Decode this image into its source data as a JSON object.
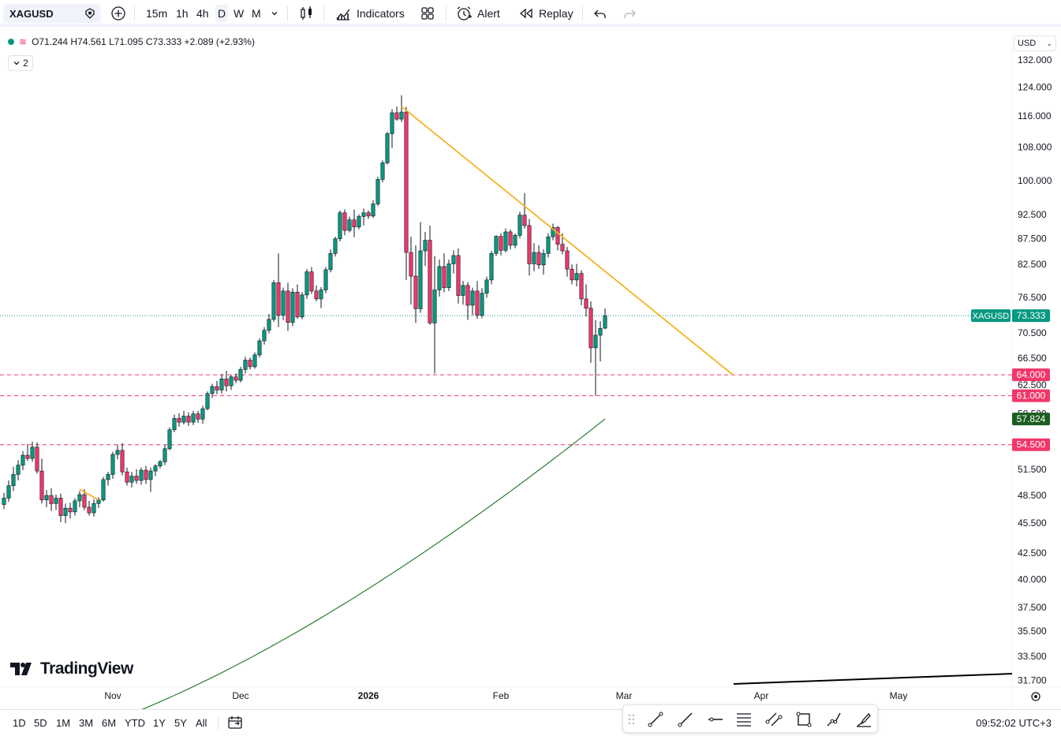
{
  "toolbar": {
    "symbol": "XAGUSD",
    "intervals": [
      "15m",
      "1h",
      "4h",
      "D",
      "W",
      "M"
    ],
    "active_interval": "D",
    "indicators_label": "Indicators",
    "alert_label": "Alert",
    "replay_label": "Replay"
  },
  "legend": {
    "ohlc": "O71.244 H74.561 L71.095 C73.333 +2.089 (+2.93%)",
    "collapse_count": "2"
  },
  "currency": "USD",
  "chart_data": {
    "type": "candlestick",
    "symbol": "XAGUSD",
    "price_axis_labels": [
      "132.000",
      "124.000",
      "116.000",
      "108.000",
      "100.000",
      "92.500",
      "87.500",
      "82.500",
      "76.500",
      "70.500",
      "66.500",
      "62.500",
      "58.500",
      "51.500",
      "48.500",
      "45.500",
      "42.500",
      "40.000",
      "37.500",
      "35.500",
      "33.500",
      "31.700"
    ],
    "time_axis_labels": [
      "Nov",
      "Dec",
      "2026",
      "Feb",
      "Mar",
      "Apr",
      "May"
    ],
    "last_price": 73.333,
    "last_price_label": "XAGUSD",
    "horizontal_levels": [
      {
        "value": 64.0,
        "label": "64.000",
        "color": "#f23669"
      },
      {
        "value": 61.0,
        "label": "61.000",
        "color": "#f23669"
      },
      {
        "value": 54.5,
        "label": "54.500",
        "color": "#f23669"
      }
    ],
    "moving_average": {
      "current": 57.824,
      "label": "57.824",
      "color": "#2e7d32"
    },
    "up_color": "#089981",
    "down_color": "#f23669",
    "trendline_color": "#f2b324",
    "candles": [
      [
        47.5,
        48.8,
        47.0,
        48.2
      ],
      [
        48.2,
        50.2,
        47.8,
        49.6
      ],
      [
        49.6,
        51.8,
        49.0,
        50.9
      ],
      [
        50.9,
        52.6,
        50.2,
        52.0
      ],
      [
        52.0,
        53.7,
        51.4,
        53.2
      ],
      [
        53.2,
        54.6,
        52.5,
        52.8
      ],
      [
        52.8,
        54.9,
        52.4,
        54.2
      ],
      [
        54.2,
        54.8,
        51.0,
        51.3
      ],
      [
        51.3,
        52.8,
        47.6,
        48.0
      ],
      [
        48.0,
        49.1,
        47.2,
        48.5
      ],
      [
        48.5,
        49.3,
        46.8,
        47.6
      ],
      [
        47.6,
        48.6,
        46.9,
        48.2
      ],
      [
        48.2,
        48.7,
        45.6,
        46.3
      ],
      [
        46.3,
        47.6,
        45.5,
        47.1
      ],
      [
        47.1,
        47.7,
        46.0,
        46.7
      ],
      [
        46.7,
        48.2,
        46.3,
        47.9
      ],
      [
        47.9,
        49.0,
        47.2,
        48.6
      ],
      [
        48.6,
        49.2,
        46.9,
        47.2
      ],
      [
        47.2,
        47.9,
        46.3,
        46.6
      ],
      [
        46.6,
        48.1,
        46.2,
        47.6
      ],
      [
        47.6,
        48.3,
        47.1,
        48.0
      ],
      [
        48.0,
        50.6,
        47.8,
        50.3
      ],
      [
        50.3,
        51.2,
        49.6,
        50.9
      ],
      [
        50.9,
        53.6,
        50.4,
        53.3
      ],
      [
        53.3,
        54.5,
        52.7,
        53.8
      ],
      [
        53.8,
        54.7,
        50.8,
        51.2
      ],
      [
        51.2,
        51.7,
        49.6,
        50.0
      ],
      [
        50.0,
        51.2,
        49.4,
        50.7
      ],
      [
        50.7,
        51.5,
        49.8,
        50.2
      ],
      [
        50.2,
        51.7,
        49.7,
        51.4
      ],
      [
        51.4,
        51.9,
        49.8,
        50.3
      ],
      [
        50.3,
        51.7,
        48.9,
        51.3
      ],
      [
        51.3,
        52.1,
        50.7,
        51.9
      ],
      [
        51.9,
        52.6,
        51.6,
        52.4
      ],
      [
        52.4,
        54.5,
        52.0,
        54.0
      ],
      [
        54.0,
        56.7,
        53.8,
        56.4
      ],
      [
        56.4,
        58.4,
        56.1,
        57.9
      ],
      [
        57.9,
        58.6,
        56.8,
        57.4
      ],
      [
        57.4,
        58.9,
        57.1,
        58.2
      ],
      [
        58.2,
        58.7,
        56.9,
        57.4
      ],
      [
        57.4,
        58.9,
        57.0,
        58.5
      ],
      [
        58.5,
        58.9,
        57.3,
        57.8
      ],
      [
        57.8,
        59.6,
        57.2,
        59.2
      ],
      [
        59.2,
        61.6,
        59.0,
        61.3
      ],
      [
        61.3,
        62.7,
        60.7,
        62.3
      ],
      [
        62.3,
        63.1,
        61.2,
        61.8
      ],
      [
        61.8,
        64.1,
        61.3,
        63.4
      ],
      [
        63.4,
        64.6,
        61.6,
        62.4
      ],
      [
        62.4,
        64.0,
        61.8,
        63.7
      ],
      [
        63.7,
        64.2,
        62.8,
        63.2
      ],
      [
        63.2,
        65.2,
        62.9,
        64.8
      ],
      [
        64.8,
        66.7,
        64.2,
        66.2
      ],
      [
        66.2,
        66.6,
        64.8,
        65.2
      ],
      [
        65.2,
        67.4,
        64.9,
        67.0
      ],
      [
        67.0,
        69.6,
        66.6,
        69.2
      ],
      [
        69.2,
        71.4,
        68.6,
        70.9
      ],
      [
        70.9,
        73.6,
        70.4,
        72.7
      ],
      [
        72.7,
        79.6,
        72.3,
        79.1
      ],
      [
        79.1,
        84.6,
        71.4,
        73.4
      ],
      [
        73.4,
        78.2,
        72.6,
        77.6
      ],
      [
        77.6,
        79.1,
        70.8,
        72.2
      ],
      [
        72.2,
        78.1,
        71.6,
        77.4
      ],
      [
        77.4,
        78.8,
        72.8,
        73.1
      ],
      [
        73.1,
        77.4,
        72.7,
        76.9
      ],
      [
        76.9,
        81.6,
        76.2,
        81.1
      ],
      [
        81.1,
        82.0,
        77.1,
        77.6
      ],
      [
        77.6,
        78.6,
        75.8,
        76.2
      ],
      [
        76.2,
        78.3,
        74.6,
        77.8
      ],
      [
        77.8,
        82.0,
        77.2,
        81.5
      ],
      [
        81.5,
        85.4,
        81.0,
        84.6
      ],
      [
        84.6,
        87.9,
        84.0,
        87.5
      ],
      [
        87.5,
        93.4,
        87.0,
        92.9
      ],
      [
        92.9,
        93.6,
        88.2,
        89.2
      ],
      [
        89.2,
        92.1,
        88.8,
        91.4
      ],
      [
        91.4,
        93.6,
        87.8,
        89.9
      ],
      [
        89.9,
        92.6,
        89.4,
        92.1
      ],
      [
        92.1,
        93.8,
        90.2,
        92.9
      ],
      [
        92.9,
        93.4,
        91.6,
        92.2
      ],
      [
        92.2,
        95.6,
        91.8,
        94.8
      ],
      [
        94.8,
        100.9,
        94.4,
        100.3
      ],
      [
        100.3,
        104.8,
        99.6,
        104.2
      ],
      [
        104.2,
        111.9,
        103.8,
        111.4
      ],
      [
        111.4,
        117.9,
        107.8,
        116.9
      ],
      [
        116.9,
        118.6,
        114.8,
        115.2
      ],
      [
        115.2,
        121.7,
        114.4,
        117.1
      ],
      [
        117.1,
        118.5,
        79.6,
        84.8
      ],
      [
        84.8,
        87.9,
        75.2,
        80.3
      ],
      [
        80.3,
        86.2,
        72.1,
        74.5
      ],
      [
        74.5,
        90.9,
        73.8,
        85.1
      ],
      [
        85.1,
        88.9,
        82.2,
        87.2
      ],
      [
        87.2,
        90.2,
        71.8,
        72.1
      ],
      [
        72.1,
        84.1,
        64.2,
        77.8
      ],
      [
        77.8,
        83.4,
        76.6,
        82.1
      ],
      [
        82.1,
        84.6,
        77.4,
        78.2
      ],
      [
        78.2,
        83.4,
        77.6,
        82.6
      ],
      [
        82.6,
        85.2,
        80.8,
        84.2
      ],
      [
        84.2,
        85.6,
        75.4,
        76.8
      ],
      [
        76.8,
        79.4,
        75.2,
        78.6
      ],
      [
        78.6,
        79.2,
        72.6,
        75.1
      ],
      [
        75.1,
        78.2,
        73.4,
        77.6
      ],
      [
        77.6,
        79.4,
        72.8,
        73.4
      ],
      [
        73.4,
        78.1,
        72.9,
        77.2
      ],
      [
        77.2,
        80.2,
        76.4,
        79.6
      ],
      [
        79.6,
        85.1,
        78.8,
        84.6
      ],
      [
        84.6,
        88.2,
        84.1,
        88.0
      ],
      [
        88.0,
        88.6,
        84.2,
        85.2
      ],
      [
        85.2,
        89.6,
        84.8,
        88.9
      ],
      [
        88.9,
        89.4,
        85.4,
        86.2
      ],
      [
        86.2,
        88.6,
        85.6,
        88.2
      ],
      [
        88.2,
        93.1,
        87.6,
        92.4
      ],
      [
        92.4,
        97.2,
        89.6,
        90.2
      ],
      [
        90.2,
        91.6,
        80.4,
        82.6
      ],
      [
        82.6,
        86.6,
        81.2,
        84.8
      ],
      [
        84.8,
        86.2,
        81.6,
        82.4
      ],
      [
        82.4,
        85.4,
        80.6,
        84.6
      ],
      [
        84.6,
        88.6,
        83.8,
        87.9
      ],
      [
        87.9,
        90.6,
        87.2,
        89.8
      ],
      [
        89.8,
        90.1,
        85.2,
        86.4
      ],
      [
        86.4,
        88.6,
        84.4,
        85.1
      ],
      [
        85.1,
        85.9,
        80.2,
        81.6
      ],
      [
        81.6,
        82.5,
        78.8,
        79.6
      ],
      [
        79.6,
        82.6,
        78.4,
        80.8
      ],
      [
        80.8,
        81.4,
        75.1,
        76.2
      ],
      [
        76.2,
        78.8,
        73.2,
        74.6
      ],
      [
        74.6,
        75.8,
        65.8,
        68.1
      ],
      [
        68.1,
        72.6,
        61.0,
        70.1
      ],
      [
        70.1,
        72.4,
        66.0,
        71.2
      ],
      [
        71.244,
        74.561,
        71.095,
        73.333
      ]
    ],
    "trendlines": [
      {
        "from": {
          "index": 84,
          "value": 118.6
        },
        "to": {
          "index": 154,
          "value": 64.0
        }
      },
      {
        "from": {
          "index": 16,
          "value": 49.2
        },
        "to": {
          "index": 20,
          "value": 48.0
        }
      }
    ]
  },
  "branding": {
    "logo_text": "TradingView"
  },
  "bottom": {
    "ranges": [
      "1D",
      "5D",
      "1M",
      "3M",
      "6M",
      "YTD",
      "1Y",
      "5Y",
      "All"
    ],
    "time": "09:52:02 UTC+3"
  }
}
